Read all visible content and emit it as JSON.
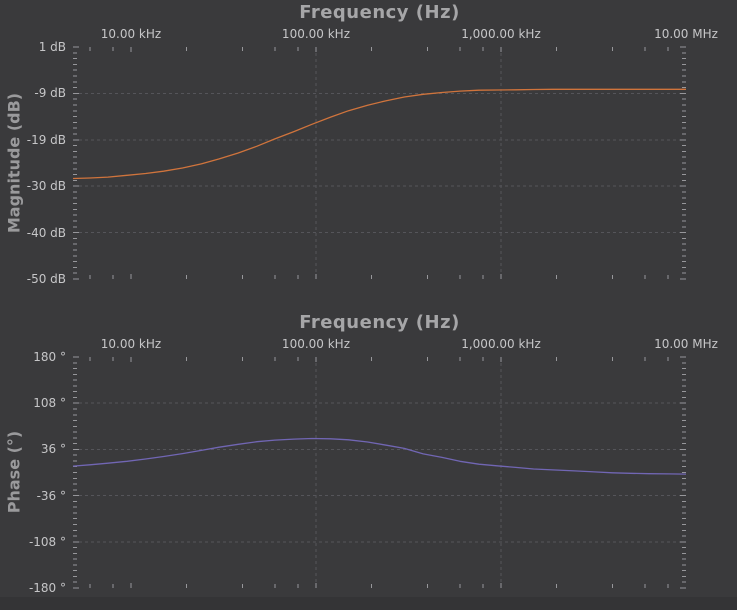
{
  "styles": {
    "background": "#3a3a3c",
    "footer": "#343436",
    "grid_color": "#55555a",
    "tick_color": "#97979b",
    "tick_label_color": "#c6c6c8",
    "title_color": "#a6a6a8",
    "axis_title_color": "#9a9a9c",
    "magnitude_trace_color": "#d0743c",
    "phase_trace_color": "#7166b4"
  },
  "chart_data": [
    {
      "id": "magnitude",
      "type": "line",
      "title": "Frequency (Hz)",
      "grid": "dashed",
      "legend": "none",
      "x_axis": {
        "scale": "log",
        "unit": "kHz",
        "min": 4.86,
        "max": 10000,
        "tick_values": [
          10,
          100,
          1000,
          10000
        ],
        "tick_labels": [
          "10.00 kHz",
          "100.00 kHz",
          "1,000.00 kHz",
          "10.00 MHz"
        ],
        "minor_tick_values": [
          6,
          8,
          20,
          40,
          60,
          80,
          200,
          400,
          600,
          800,
          2000,
          4000,
          6000,
          8000
        ],
        "gridline_values": [
          100,
          1000
        ]
      },
      "y_axis": {
        "title": "Magnitude (dB)",
        "unit": "dB",
        "min": -50,
        "max": 1,
        "tick_labels": [
          "1 dB",
          "-9 dB",
          "-19 dB",
          "-30 dB",
          "-40 dB",
          "-50 dB"
        ],
        "minor_divisions_per_major": 8
      },
      "series": [
        {
          "name": "Magnitude",
          "color": "#d0743c",
          "points": [
            [
              4.86,
              -27.9
            ],
            [
              6,
              -27.8
            ],
            [
              7.5,
              -27.6
            ],
            [
              9.5,
              -27.2
            ],
            [
              12,
              -26.8
            ],
            [
              15,
              -26.3
            ],
            [
              19,
              -25.6
            ],
            [
              24,
              -24.7
            ],
            [
              30,
              -23.6
            ],
            [
              38,
              -22.3
            ],
            [
              48,
              -20.8
            ],
            [
              60,
              -19.2
            ],
            [
              76,
              -17.6
            ],
            [
              95,
              -16.0
            ],
            [
              120,
              -14.4
            ],
            [
              150,
              -13.0
            ],
            [
              190,
              -11.8
            ],
            [
              240,
              -10.8
            ],
            [
              300,
              -10.0
            ],
            [
              380,
              -9.4
            ],
            [
              480,
              -9.0
            ],
            [
              600,
              -8.7
            ],
            [
              760,
              -8.5
            ],
            [
              950,
              -8.45
            ],
            [
              1200,
              -8.4
            ],
            [
              1500,
              -8.35
            ],
            [
              1900,
              -8.3
            ],
            [
              2500,
              -8.3
            ],
            [
              3200,
              -8.3
            ],
            [
              4000,
              -8.3
            ],
            [
              5000,
              -8.3
            ],
            [
              6300,
              -8.3
            ],
            [
              8000,
              -8.3
            ],
            [
              10000,
              -8.3
            ]
          ]
        }
      ]
    },
    {
      "id": "phase",
      "type": "line",
      "title": "Frequency (Hz)",
      "grid": "dashed",
      "legend": "none",
      "x_axis": {
        "scale": "log",
        "unit": "kHz",
        "min": 4.86,
        "max": 10000,
        "tick_values": [
          10,
          100,
          1000,
          10000
        ],
        "tick_labels": [
          "10.00 kHz",
          "100.00 kHz",
          "1,000.00 kHz",
          "10.00 MHz"
        ],
        "minor_tick_values": [
          6,
          8,
          20,
          40,
          60,
          80,
          200,
          400,
          600,
          800,
          2000,
          4000,
          6000,
          8000
        ],
        "gridline_values": [
          100,
          1000
        ]
      },
      "y_axis": {
        "title": "Phase (°)",
        "unit": "°",
        "min": -180,
        "max": 180,
        "tick_labels": [
          "180 °",
          "108 °",
          "36 °",
          "-36 °",
          "-108 °",
          "-180 °"
        ],
        "minor_divisions_per_major": 8
      },
      "series": [
        {
          "name": "Phase",
          "color": "#7166b4",
          "points": [
            [
              4.86,
              10
            ],
            [
              6,
              12
            ],
            [
              7.5,
              14.5
            ],
            [
              9.5,
              17.5
            ],
            [
              12,
              21
            ],
            [
              15,
              25
            ],
            [
              19,
              29.5
            ],
            [
              24,
              34.5
            ],
            [
              30,
              39.5
            ],
            [
              38,
              44
            ],
            [
              48,
              48
            ],
            [
              60,
              50.5
            ],
            [
              76,
              52
            ],
            [
              95,
              53
            ],
            [
              120,
              52.5
            ],
            [
              150,
              51
            ],
            [
              190,
              47.5
            ],
            [
              240,
              42.5
            ],
            [
              300,
              37.5
            ],
            [
              380,
              29
            ],
            [
              480,
              23.5
            ],
            [
              600,
              17.5
            ],
            [
              760,
              13
            ],
            [
              950,
              10.5
            ],
            [
              1200,
              8
            ],
            [
              1500,
              5.5
            ],
            [
              1900,
              4
            ],
            [
              2500,
              2.5
            ],
            [
              3200,
              1
            ],
            [
              4000,
              -0.5
            ],
            [
              5000,
              -1.3
            ],
            [
              6300,
              -1.8
            ],
            [
              8000,
              -2.2
            ],
            [
              10000,
              -2.5
            ]
          ]
        }
      ]
    }
  ]
}
